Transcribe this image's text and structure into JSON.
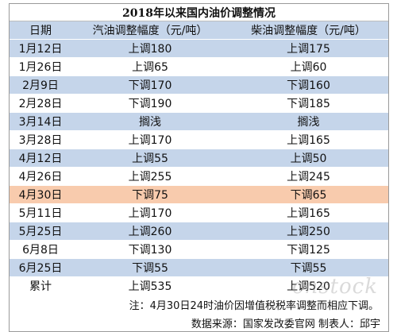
{
  "title": "2018年以来国内油价调整情况",
  "headers": {
    "date": "日期",
    "gasoline": "汽油调整幅度（元/吨）",
    "diesel": "柴油调整幅度（元/吨）"
  },
  "rows": [
    {
      "date": "1月12日",
      "gasoline": "上调180",
      "diesel": "上调175",
      "style": "blue"
    },
    {
      "date": "1月26日",
      "gasoline": "上调65",
      "diesel": "上调60",
      "style": "white"
    },
    {
      "date": "2月9日",
      "gasoline": "下调170",
      "diesel": "下调160",
      "style": "blue"
    },
    {
      "date": "2月28日",
      "gasoline": "下调190",
      "diesel": "下调185",
      "style": "white"
    },
    {
      "date": "3月14日",
      "gasoline": "搁浅",
      "diesel": "搁浅",
      "style": "blue"
    },
    {
      "date": "3月28日",
      "gasoline": "上调170",
      "diesel": "上调165",
      "style": "white"
    },
    {
      "date": "4月12日",
      "gasoline": "上调55",
      "diesel": "上调50",
      "style": "blue"
    },
    {
      "date": "4月26日",
      "gasoline": "上调255",
      "diesel": "上调245",
      "style": "white"
    },
    {
      "date": "4月30日",
      "gasoline": "下调75",
      "diesel": "下调65",
      "style": "orange"
    },
    {
      "date": "5月11日",
      "gasoline": "上调170",
      "diesel": "上调165",
      "style": "white"
    },
    {
      "date": "5月25日",
      "gasoline": "上调260",
      "diesel": "上调250",
      "style": "blue"
    },
    {
      "date": "6月8日",
      "gasoline": "下调130",
      "diesel": "下调125",
      "style": "white"
    },
    {
      "date": "6月25日",
      "gasoline": "下调55",
      "diesel": "下调55",
      "style": "blue"
    }
  ],
  "total": {
    "label": "累计",
    "gasoline": "上调535",
    "diesel": "上调520"
  },
  "note": "注：4月30日24时油价因增值税税率调整而相应下调。",
  "source": "数据来源：国家发改委官网 制表人：邱宇",
  "watermark": "cnstock",
  "colors": {
    "blue_row": "#c5d5ea",
    "white_row": "#ffffff",
    "highlight_row": "#f8cbad"
  }
}
